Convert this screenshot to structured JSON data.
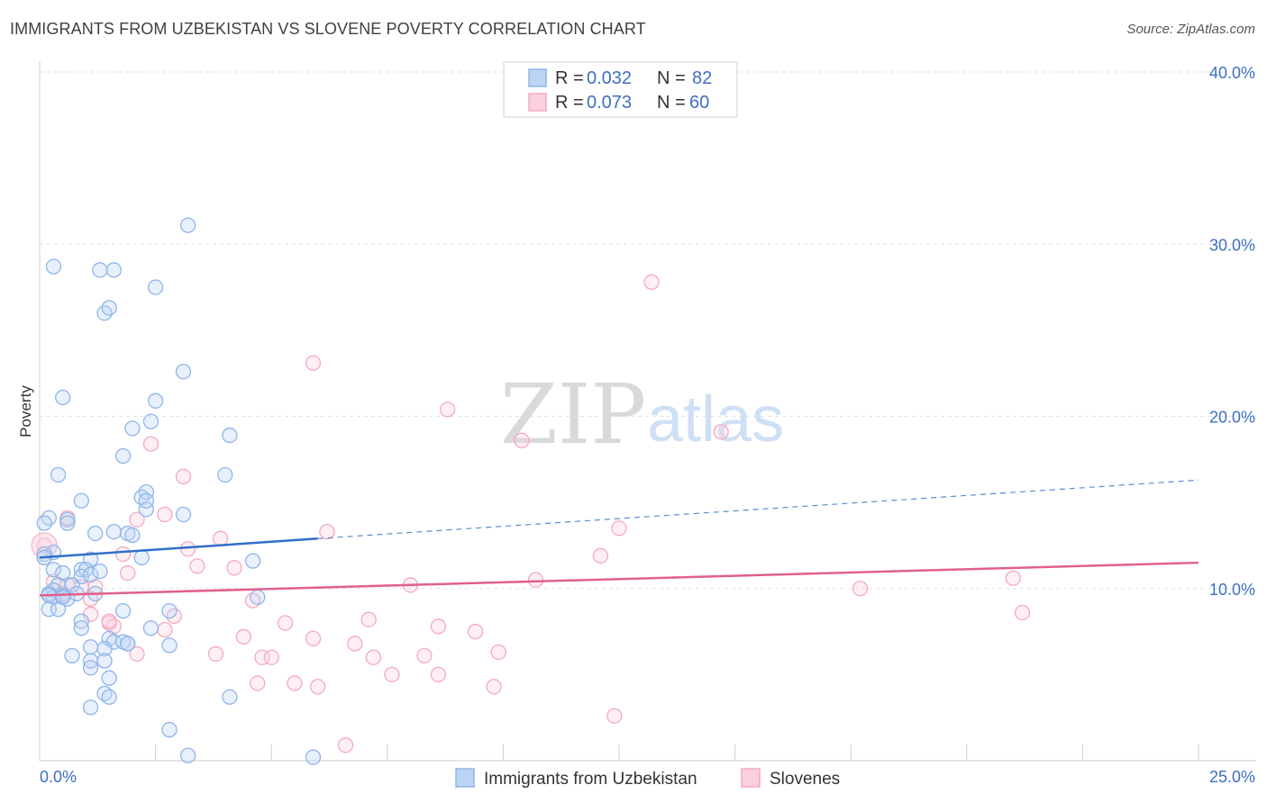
{
  "title": "IMMIGRANTS FROM UZBEKISTAN VS SLOVENE POVERTY CORRELATION CHART",
  "source": "Source: ZipAtlas.com",
  "watermark": {
    "zip": "ZIP",
    "atlas": "atlas"
  },
  "chart_data": {
    "type": "scatter",
    "title": "IMMIGRANTS FROM UZBEKISTAN VS SLOVENE POVERTY CORRELATION CHART",
    "xlabel": "",
    "ylabel": "Poverty",
    "xlim": [
      0,
      25
    ],
    "ylim": [
      0,
      40
    ],
    "x_tick_labels": [
      "0.0%",
      "25.0%"
    ],
    "y_ticks": [
      10,
      20,
      30,
      40
    ],
    "y_tick_labels": [
      "10.0%",
      "20.0%",
      "30.0%",
      "40.0%"
    ],
    "grid": true,
    "legend_position": "top-center",
    "legend": [
      {
        "r_label": "R =",
        "r_value": "0.032",
        "n_label": "N =",
        "n_value": "82"
      },
      {
        "r_label": "R =",
        "r_value": "0.073",
        "n_label": "N =",
        "n_value": "60"
      }
    ],
    "series": [
      {
        "name": "Immigrants from Uzbekistan",
        "color": "#8fb5ea",
        "line_color": "#2f6fca",
        "trend": {
          "x0": 0,
          "y0": 11.8,
          "x1": 6,
          "y1": 12.9,
          "x_dash_end": 25,
          "y_dash_end": 16.3
        },
        "points": [
          [
            0.3,
            28.7
          ],
          [
            1.3,
            28.5
          ],
          [
            1.6,
            28.5
          ],
          [
            2.5,
            27.5
          ],
          [
            1.4,
            26.0
          ],
          [
            1.5,
            26.3
          ],
          [
            3.2,
            31.1
          ],
          [
            0.5,
            21.1
          ],
          [
            2.5,
            20.9
          ],
          [
            3.1,
            22.6
          ],
          [
            2.4,
            19.7
          ],
          [
            2.0,
            19.3
          ],
          [
            4.1,
            18.9
          ],
          [
            1.8,
            17.7
          ],
          [
            0.4,
            16.6
          ],
          [
            4.0,
            16.6
          ],
          [
            0.9,
            15.1
          ],
          [
            2.3,
            15.6
          ],
          [
            2.2,
            15.3
          ],
          [
            2.3,
            14.6
          ],
          [
            3.1,
            14.3
          ],
          [
            0.2,
            14.1
          ],
          [
            0.6,
            14.0
          ],
          [
            0.6,
            13.8
          ],
          [
            0.1,
            13.8
          ],
          [
            1.6,
            13.3
          ],
          [
            1.9,
            13.2
          ],
          [
            2.0,
            13.1
          ],
          [
            1.2,
            13.2
          ],
          [
            0.3,
            12.1
          ],
          [
            1.1,
            11.7
          ],
          [
            2.2,
            11.8
          ],
          [
            4.6,
            11.6
          ],
          [
            0.1,
            12.0
          ],
          [
            0.1,
            11.8
          ],
          [
            0.3,
            11.1
          ],
          [
            0.5,
            10.9
          ],
          [
            0.9,
            11.1
          ],
          [
            1.0,
            11.1
          ],
          [
            0.9,
            10.7
          ],
          [
            0.7,
            10.2
          ],
          [
            0.4,
            10.2
          ],
          [
            0.3,
            9.9
          ],
          [
            0.2,
            9.7
          ],
          [
            0.3,
            9.5
          ],
          [
            0.5,
            9.6
          ],
          [
            0.6,
            9.4
          ],
          [
            0.8,
            9.7
          ],
          [
            1.2,
            9.7
          ],
          [
            4.7,
            9.5
          ],
          [
            0.2,
            8.8
          ],
          [
            0.4,
            8.8
          ],
          [
            2.8,
            8.7
          ],
          [
            1.8,
            8.7
          ],
          [
            0.9,
            8.1
          ],
          [
            2.4,
            7.7
          ],
          [
            0.9,
            7.7
          ],
          [
            1.5,
            7.1
          ],
          [
            1.6,
            6.9
          ],
          [
            1.8,
            6.9
          ],
          [
            1.9,
            6.8
          ],
          [
            1.1,
            6.6
          ],
          [
            1.4,
            6.5
          ],
          [
            2.8,
            6.7
          ],
          [
            0.7,
            6.1
          ],
          [
            1.1,
            5.8
          ],
          [
            1.4,
            5.8
          ],
          [
            1.1,
            5.4
          ],
          [
            1.5,
            4.8
          ],
          [
            1.4,
            3.9
          ],
          [
            1.5,
            3.7
          ],
          [
            4.1,
            3.7
          ],
          [
            1.1,
            3.1
          ],
          [
            2.8,
            1.8
          ],
          [
            3.2,
            0.3
          ],
          [
            5.9,
            0.2
          ],
          [
            2.3,
            15.1
          ],
          [
            0.2,
            9.6
          ],
          [
            1.1,
            10.8
          ],
          [
            0.5,
            9.5
          ],
          [
            1.9,
            6.8
          ],
          [
            1.3,
            11.0
          ]
        ]
      },
      {
        "name": "Slovenes",
        "color": "#f4a9c1",
        "line_color": "#e0608c",
        "trend": {
          "x0": 0,
          "y0": 9.6,
          "x1": 25,
          "y1": 11.5
        },
        "points": [
          [
            13.2,
            27.8
          ],
          [
            5.9,
            23.1
          ],
          [
            8.8,
            20.4
          ],
          [
            10.4,
            18.6
          ],
          [
            14.7,
            19.1
          ],
          [
            2.4,
            18.4
          ],
          [
            3.1,
            16.5
          ],
          [
            2.1,
            14.0
          ],
          [
            2.7,
            14.3
          ],
          [
            0.6,
            14.1
          ],
          [
            3.9,
            12.9
          ],
          [
            6.2,
            13.3
          ],
          [
            12.5,
            13.5
          ],
          [
            12.1,
            11.9
          ],
          [
            3.2,
            12.3
          ],
          [
            3.4,
            11.3
          ],
          [
            4.2,
            11.2
          ],
          [
            1.8,
            12.0
          ],
          [
            1.9,
            10.9
          ],
          [
            0.3,
            10.4
          ],
          [
            0.6,
            10.2
          ],
          [
            1.2,
            10.1
          ],
          [
            1.1,
            9.4
          ],
          [
            0.9,
            10.1
          ],
          [
            0.5,
            9.7
          ],
          [
            4.6,
            9.3
          ],
          [
            10.7,
            10.5
          ],
          [
            8.0,
            10.2
          ],
          [
            17.7,
            10.0
          ],
          [
            21.0,
            10.6
          ],
          [
            21.2,
            8.6
          ],
          [
            1.1,
            8.5
          ],
          [
            2.9,
            8.4
          ],
          [
            1.5,
            8.0
          ],
          [
            1.6,
            7.8
          ],
          [
            2.7,
            7.6
          ],
          [
            5.3,
            8.0
          ],
          [
            7.1,
            8.2
          ],
          [
            8.6,
            7.8
          ],
          [
            9.4,
            7.5
          ],
          [
            4.4,
            7.2
          ],
          [
            5.9,
            7.1
          ],
          [
            6.8,
            6.8
          ],
          [
            2.1,
            6.2
          ],
          [
            3.8,
            6.2
          ],
          [
            4.8,
            6.0
          ],
          [
            5.0,
            6.0
          ],
          [
            7.2,
            6.0
          ],
          [
            8.3,
            6.1
          ],
          [
            9.9,
            6.3
          ],
          [
            5.5,
            4.5
          ],
          [
            6.0,
            4.3
          ],
          [
            4.7,
            4.5
          ],
          [
            7.6,
            5.0
          ],
          [
            8.6,
            5.0
          ],
          [
            9.8,
            4.3
          ],
          [
            12.4,
            2.6
          ],
          [
            6.6,
            0.9
          ],
          [
            0.1,
            12.5
          ],
          [
            1.5,
            8.1
          ]
        ]
      }
    ]
  }
}
